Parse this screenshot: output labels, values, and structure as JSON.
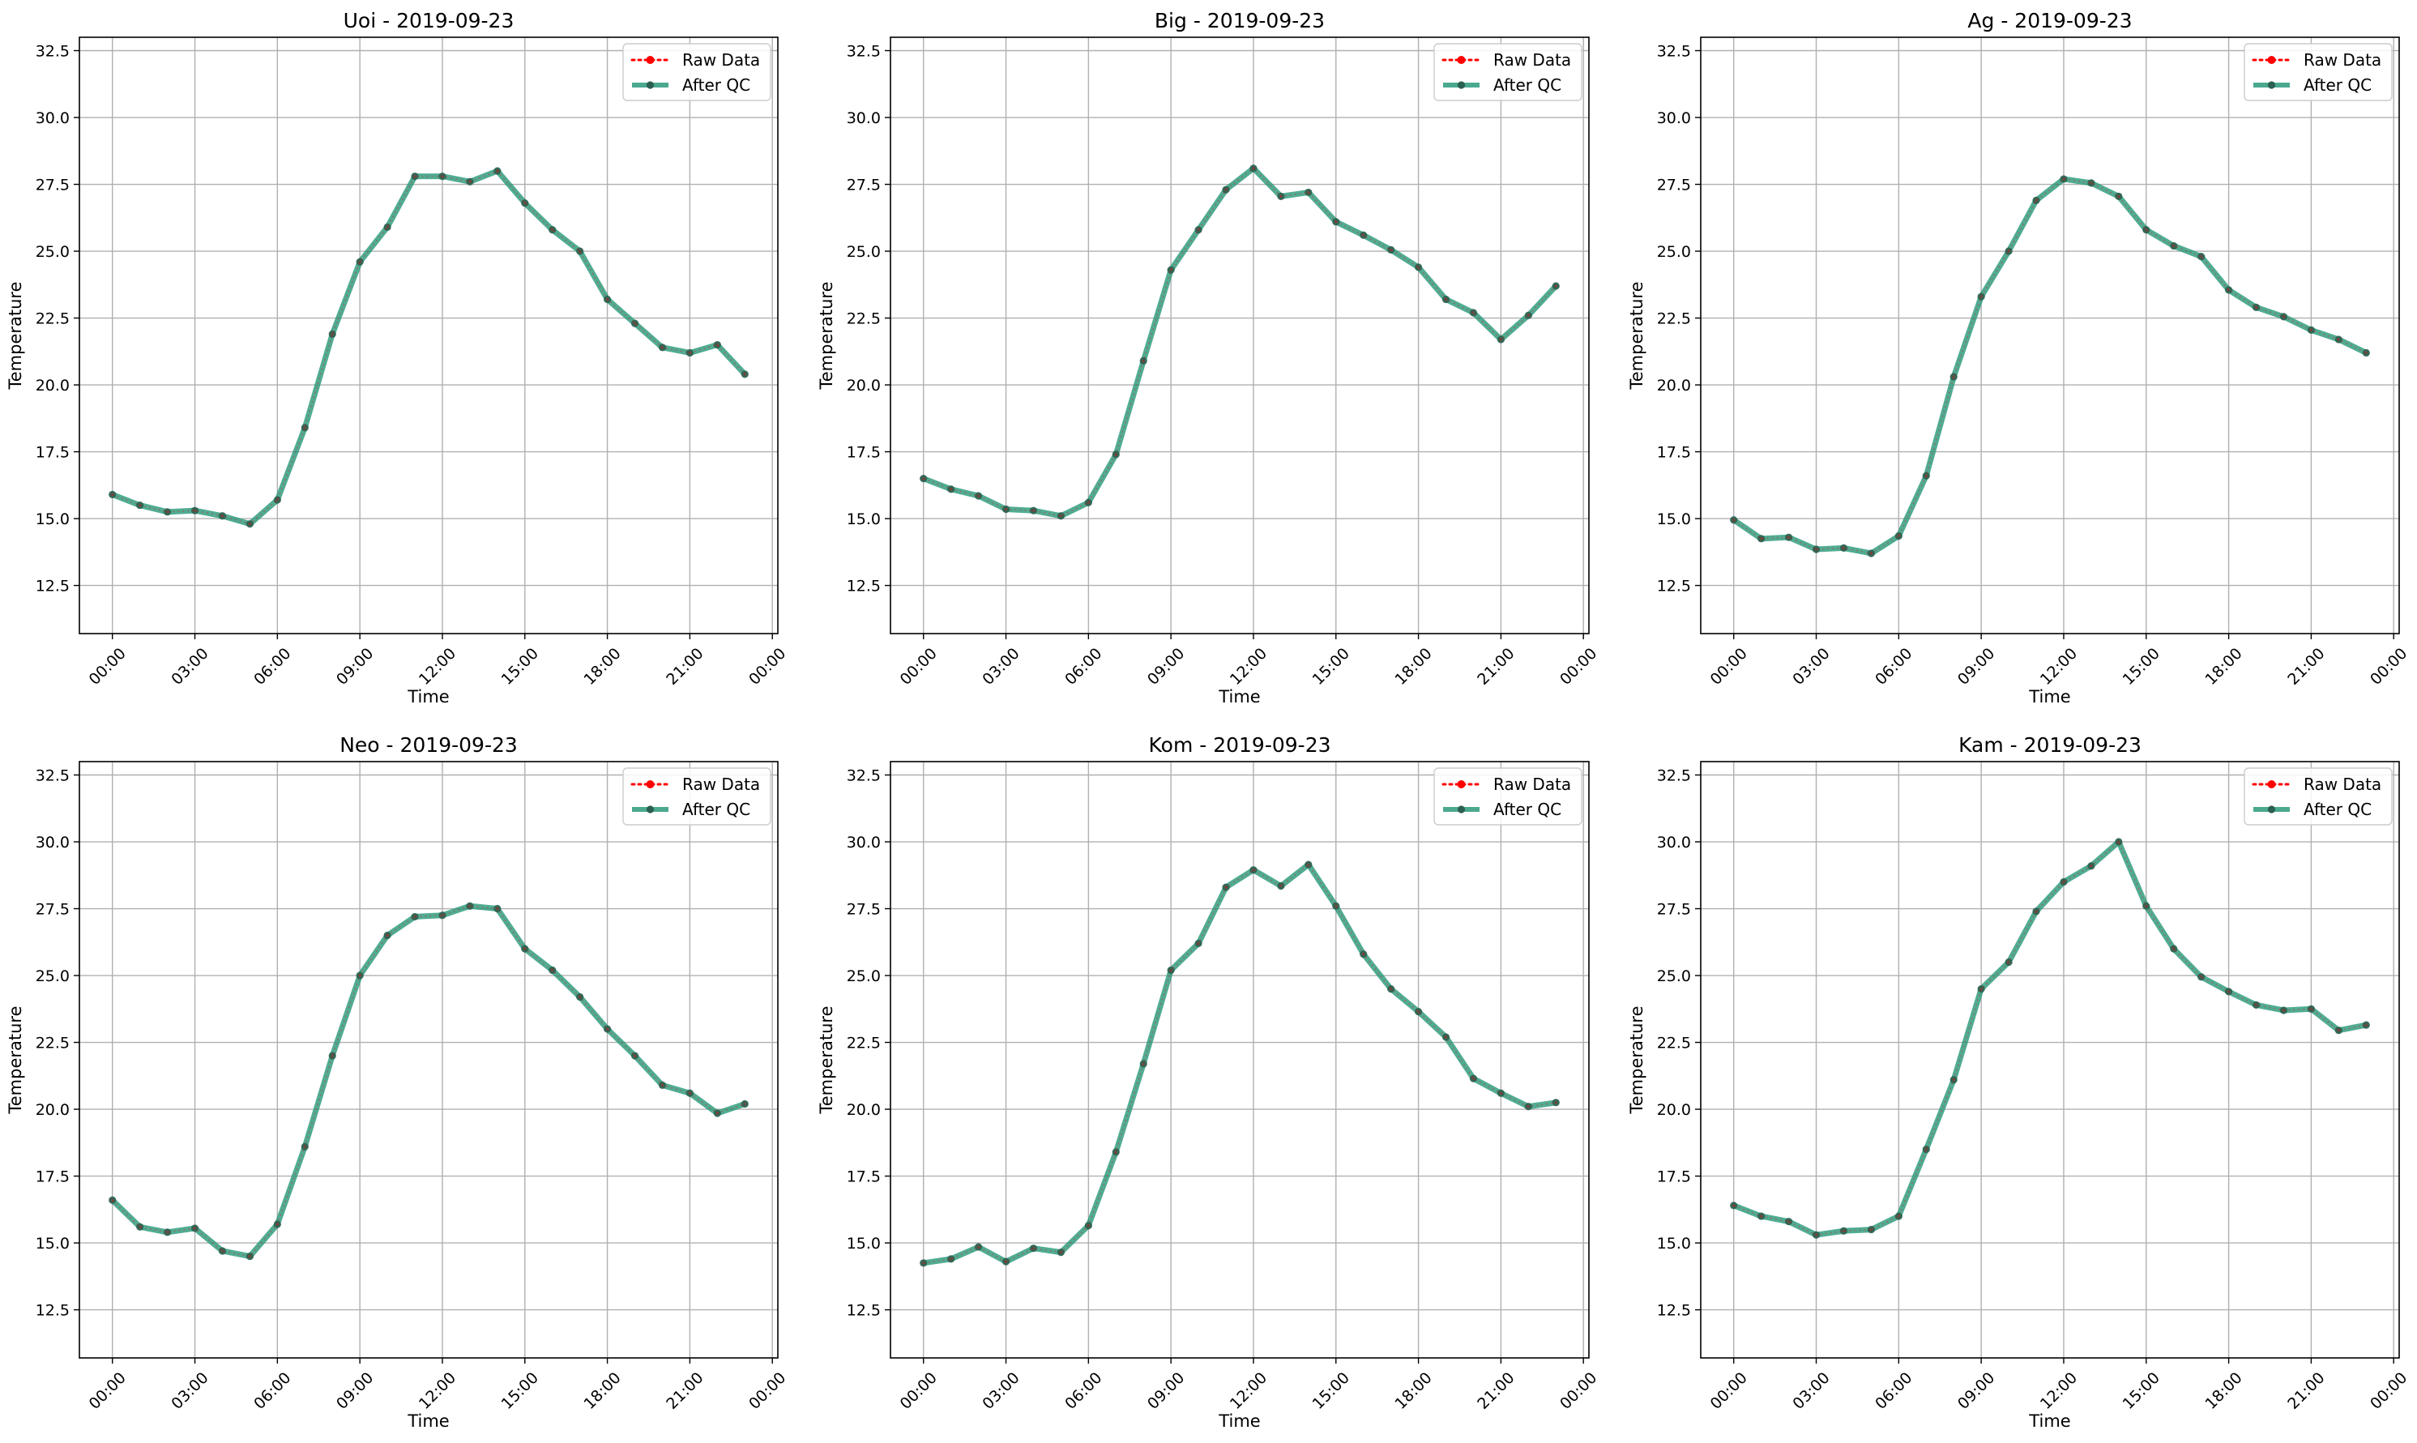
{
  "colors": {
    "raw": "#ff0000",
    "qc": "#2a9a7b",
    "qc_marker": "#2b5f51",
    "grid": "#b0b0b0",
    "axis": "#000000",
    "legend_border": "#cccccc"
  },
  "legend": {
    "raw_label": "Raw Data",
    "qc_label": "After QC",
    "placement": "upper right"
  },
  "chart_data": [
    {
      "type": "line",
      "title": "Uoi - 2019-09-23",
      "xlabel": "Time",
      "ylabel": "Temperature",
      "x_unit": "hour of day",
      "xlim": [
        -1.2,
        24.2
      ],
      "ylim": [
        10.7,
        33.0
      ],
      "xtick_values": [
        0,
        3,
        6,
        9,
        12,
        15,
        18,
        21,
        24
      ],
      "xticks": [
        "00:00",
        "03:00",
        "06:00",
        "09:00",
        "12:00",
        "15:00",
        "18:00",
        "21:00",
        "00:00"
      ],
      "yticks": [
        "12.5",
        "15.0",
        "17.5",
        "20.0",
        "22.5",
        "25.0",
        "27.5",
        "30.0",
        "32.5"
      ],
      "grid": true,
      "x": [
        0,
        1,
        2,
        3,
        4,
        5,
        6,
        7,
        8,
        9,
        10,
        11,
        12,
        13,
        14,
        15,
        16,
        17,
        18,
        19,
        20,
        21,
        22,
        23
      ],
      "series": [
        {
          "name": "Raw Data",
          "values": [
            15.9,
            15.5,
            15.25,
            15.3,
            15.1,
            14.8,
            15.7,
            18.4,
            21.9,
            24.6,
            25.9,
            27.8,
            27.8,
            27.6,
            28.0,
            26.8,
            25.8,
            25.0,
            23.2,
            22.3,
            21.4,
            21.2,
            21.5,
            20.4
          ]
        },
        {
          "name": "After QC",
          "values": [
            15.9,
            15.5,
            15.25,
            15.3,
            15.1,
            14.8,
            15.7,
            18.4,
            21.9,
            24.6,
            25.9,
            27.8,
            27.8,
            27.6,
            28.0,
            26.8,
            25.8,
            25.0,
            23.2,
            22.3,
            21.4,
            21.2,
            21.5,
            20.4
          ]
        }
      ]
    },
    {
      "type": "line",
      "title": "Big - 2019-09-23",
      "xlabel": "Time",
      "ylabel": "Temperature",
      "x_unit": "hour of day",
      "xlim": [
        -1.2,
        24.2
      ],
      "ylim": [
        10.7,
        33.0
      ],
      "xtick_values": [
        0,
        3,
        6,
        9,
        12,
        15,
        18,
        21,
        24
      ],
      "xticks": [
        "00:00",
        "03:00",
        "06:00",
        "09:00",
        "12:00",
        "15:00",
        "18:00",
        "21:00",
        "00:00"
      ],
      "yticks": [
        "12.5",
        "15.0",
        "17.5",
        "20.0",
        "22.5",
        "25.0",
        "27.5",
        "30.0",
        "32.5"
      ],
      "grid": true,
      "x": [
        0,
        1,
        2,
        3,
        4,
        5,
        6,
        7,
        8,
        9,
        10,
        11,
        12,
        13,
        14,
        15,
        16,
        17,
        18,
        19,
        20,
        21,
        22,
        23
      ],
      "series": [
        {
          "name": "Raw Data",
          "values": [
            16.5,
            16.1,
            15.85,
            15.35,
            15.3,
            15.1,
            15.6,
            17.4,
            20.9,
            24.3,
            25.8,
            27.3,
            28.1,
            27.05,
            27.2,
            26.1,
            25.6,
            25.05,
            24.4,
            23.2,
            22.7,
            21.7,
            22.6,
            23.7
          ]
        },
        {
          "name": "After QC",
          "values": [
            16.5,
            16.1,
            15.85,
            15.35,
            15.3,
            15.1,
            15.6,
            17.4,
            20.9,
            24.3,
            25.8,
            27.3,
            28.1,
            27.05,
            27.2,
            26.1,
            25.6,
            25.05,
            24.4,
            23.2,
            22.7,
            21.7,
            22.6,
            23.7
          ]
        }
      ]
    },
    {
      "type": "line",
      "title": "Ag - 2019-09-23",
      "xlabel": "Time",
      "ylabel": "Temperature",
      "x_unit": "hour of day",
      "xlim": [
        -1.2,
        24.2
      ],
      "ylim": [
        10.7,
        33.0
      ],
      "xtick_values": [
        0,
        3,
        6,
        9,
        12,
        15,
        18,
        21,
        24
      ],
      "xticks": [
        "00:00",
        "03:00",
        "06:00",
        "09:00",
        "12:00",
        "15:00",
        "18:00",
        "21:00",
        "00:00"
      ],
      "yticks": [
        "12.5",
        "15.0",
        "17.5",
        "20.0",
        "22.5",
        "25.0",
        "27.5",
        "30.0",
        "32.5"
      ],
      "grid": true,
      "x": [
        0,
        1,
        2,
        3,
        4,
        5,
        6,
        7,
        8,
        9,
        10,
        11,
        12,
        13,
        14,
        15,
        16,
        17,
        18,
        19,
        20,
        21,
        22,
        23
      ],
      "series": [
        {
          "name": "Raw Data",
          "values": [
            14.95,
            14.25,
            14.3,
            13.85,
            13.9,
            13.7,
            14.35,
            16.6,
            20.3,
            23.3,
            25.0,
            26.9,
            27.7,
            27.55,
            27.05,
            25.8,
            25.2,
            24.8,
            23.55,
            22.9,
            22.55,
            22.05,
            21.7,
            21.2
          ]
        },
        {
          "name": "After QC",
          "values": [
            14.95,
            14.25,
            14.3,
            13.85,
            13.9,
            13.7,
            14.35,
            16.6,
            20.3,
            23.3,
            25.0,
            26.9,
            27.7,
            27.55,
            27.05,
            25.8,
            25.2,
            24.8,
            23.55,
            22.9,
            22.55,
            22.05,
            21.7,
            21.2
          ]
        }
      ]
    },
    {
      "type": "line",
      "title": "Neo - 2019-09-23",
      "xlabel": "Time",
      "ylabel": "Temperature",
      "x_unit": "hour of day",
      "xlim": [
        -1.2,
        24.2
      ],
      "ylim": [
        10.7,
        33.0
      ],
      "xtick_values": [
        0,
        3,
        6,
        9,
        12,
        15,
        18,
        21,
        24
      ],
      "xticks": [
        "00:00",
        "03:00",
        "06:00",
        "09:00",
        "12:00",
        "15:00",
        "18:00",
        "21:00",
        "00:00"
      ],
      "yticks": [
        "12.5",
        "15.0",
        "17.5",
        "20.0",
        "22.5",
        "25.0",
        "27.5",
        "30.0",
        "32.5"
      ],
      "grid": true,
      "x": [
        0,
        1,
        2,
        3,
        4,
        5,
        6,
        7,
        8,
        9,
        10,
        11,
        12,
        13,
        14,
        15,
        16,
        17,
        18,
        19,
        20,
        21,
        22,
        23
      ],
      "series": [
        {
          "name": "Raw Data",
          "values": [
            16.6,
            15.6,
            15.4,
            15.55,
            14.7,
            14.5,
            15.7,
            18.6,
            22.0,
            25.0,
            26.5,
            27.2,
            27.25,
            27.6,
            27.5,
            26.0,
            25.2,
            24.2,
            23.0,
            22.0,
            20.9,
            20.6,
            19.85,
            20.2
          ]
        },
        {
          "name": "After QC",
          "values": [
            16.6,
            15.6,
            15.4,
            15.55,
            14.7,
            14.5,
            15.7,
            18.6,
            22.0,
            25.0,
            26.5,
            27.2,
            27.25,
            27.6,
            27.5,
            26.0,
            25.2,
            24.2,
            23.0,
            22.0,
            20.9,
            20.6,
            19.85,
            20.2
          ]
        }
      ]
    },
    {
      "type": "line",
      "title": "Kom - 2019-09-23",
      "xlabel": "Time",
      "ylabel": "Temperature",
      "x_unit": "hour of day",
      "xlim": [
        -1.2,
        24.2
      ],
      "ylim": [
        10.7,
        33.0
      ],
      "xtick_values": [
        0,
        3,
        6,
        9,
        12,
        15,
        18,
        21,
        24
      ],
      "xticks": [
        "00:00",
        "03:00",
        "06:00",
        "09:00",
        "12:00",
        "15:00",
        "18:00",
        "21:00",
        "00:00"
      ],
      "yticks": [
        "12.5",
        "15.0",
        "17.5",
        "20.0",
        "22.5",
        "25.0",
        "27.5",
        "30.0",
        "32.5"
      ],
      "grid": true,
      "x": [
        0,
        1,
        2,
        3,
        4,
        5,
        6,
        7,
        8,
        9,
        10,
        11,
        12,
        13,
        14,
        15,
        16,
        17,
        18,
        19,
        20,
        21,
        22,
        23
      ],
      "series": [
        {
          "name": "Raw Data",
          "values": [
            14.25,
            14.4,
            14.85,
            14.3,
            14.8,
            14.65,
            15.65,
            18.4,
            21.7,
            25.2,
            26.2,
            28.3,
            28.95,
            28.35,
            29.15,
            27.6,
            25.8,
            24.5,
            23.65,
            22.7,
            21.15,
            20.6,
            20.1,
            20.25
          ]
        },
        {
          "name": "After QC",
          "values": [
            14.25,
            14.4,
            14.85,
            14.3,
            14.8,
            14.65,
            15.65,
            18.4,
            21.7,
            25.2,
            26.2,
            28.3,
            28.95,
            28.35,
            29.15,
            27.6,
            25.8,
            24.5,
            23.65,
            22.7,
            21.15,
            20.6,
            20.1,
            20.25
          ]
        }
      ]
    },
    {
      "type": "line",
      "title": "Kam - 2019-09-23",
      "xlabel": "Time",
      "ylabel": "Temperature",
      "x_unit": "hour of day",
      "xlim": [
        -1.2,
        24.2
      ],
      "ylim": [
        10.7,
        33.0
      ],
      "xtick_values": [
        0,
        3,
        6,
        9,
        12,
        15,
        18,
        21,
        24
      ],
      "xticks": [
        "00:00",
        "03:00",
        "06:00",
        "09:00",
        "12:00",
        "15:00",
        "18:00",
        "21:00",
        "00:00"
      ],
      "yticks": [
        "12.5",
        "15.0",
        "17.5",
        "20.0",
        "22.5",
        "25.0",
        "27.5",
        "30.0",
        "32.5"
      ],
      "grid": true,
      "x": [
        0,
        1,
        2,
        3,
        4,
        5,
        6,
        7,
        8,
        9,
        10,
        11,
        12,
        13,
        14,
        15,
        16,
        17,
        18,
        19,
        20,
        21,
        22,
        23
      ],
      "series": [
        {
          "name": "Raw Data",
          "values": [
            16.4,
            16.0,
            15.8,
            15.3,
            15.45,
            15.5,
            16.0,
            18.5,
            21.1,
            24.5,
            25.5,
            27.4,
            28.5,
            29.1,
            30.0,
            27.6,
            26.0,
            24.95,
            24.4,
            23.9,
            23.7,
            23.75,
            22.95,
            23.15
          ]
        },
        {
          "name": "After QC",
          "values": [
            16.4,
            16.0,
            15.8,
            15.3,
            15.45,
            15.5,
            16.0,
            18.5,
            21.1,
            24.5,
            25.5,
            27.4,
            28.5,
            29.1,
            30.0,
            27.6,
            26.0,
            24.95,
            24.4,
            23.9,
            23.7,
            23.75,
            22.95,
            23.15
          ]
        }
      ]
    }
  ]
}
